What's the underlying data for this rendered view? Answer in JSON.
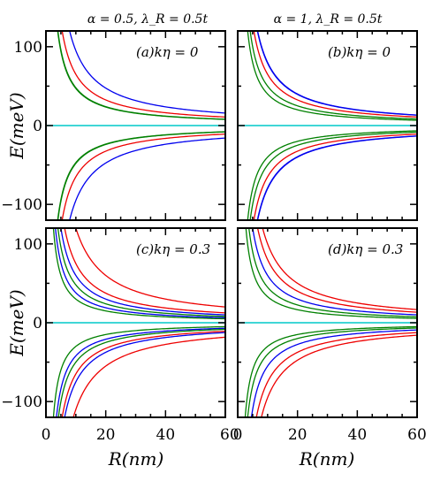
{
  "chart_data": {
    "type": "line",
    "xlabel": "R(nm)",
    "ylabel": "E(meV)",
    "xlim": [
      0,
      60
    ],
    "ylim": [
      -120,
      120
    ],
    "xticks": [
      0,
      20,
      40,
      60
    ],
    "yticks": [
      100,
      0,
      -100
    ],
    "column_titles": [
      "α = 0.5, λ_R = 0.5t",
      "α = 1, λ_R = 0.5t"
    ],
    "grid": false,
    "colors": {
      "blue": "#0000ee",
      "red": "#ee0000",
      "green": "#008000",
      "cyan": "#00c8c8"
    },
    "panels": [
      {
        "id": "a",
        "annotation": "(a)kη = 0",
        "zero_line": true,
        "curves": [
          {
            "color": "blue",
            "a": 950,
            "sign": 1
          },
          {
            "color": "red",
            "a": 650,
            "sign": 1
          },
          {
            "color": "green",
            "a": 480,
            "sign": 1
          },
          {
            "color": "green",
            "a": 470,
            "sign": 1
          },
          {
            "color": "green",
            "a": -470,
            "sign": -1
          },
          {
            "color": "green",
            "a": -480,
            "sign": -1
          },
          {
            "color": "red",
            "a": -650,
            "sign": -1
          },
          {
            "color": "blue",
            "a": -950,
            "sign": -1
          }
        ]
      },
      {
        "id": "b",
        "annotation": "(b)kη = 0",
        "zero_line": true,
        "curves": [
          {
            "color": "blue",
            "a": 800,
            "sign": 1
          },
          {
            "color": "blue",
            "a": 790,
            "sign": 1
          },
          {
            "color": "red",
            "a": 650,
            "sign": 1
          },
          {
            "color": "green",
            "a": 500,
            "sign": 1
          },
          {
            "color": "green",
            "a": 400,
            "sign": 1
          },
          {
            "color": "green",
            "a": -400,
            "sign": -1
          },
          {
            "color": "green",
            "a": -500,
            "sign": -1
          },
          {
            "color": "red",
            "a": -650,
            "sign": -1
          },
          {
            "color": "blue",
            "a": -790,
            "sign": -1
          },
          {
            "color": "blue",
            "a": -800,
            "sign": -1
          }
        ]
      },
      {
        "id": "c",
        "annotation": "(c)kη = 0.3",
        "zero_line": true,
        "curves": [
          {
            "color": "red",
            "a": 1200,
            "sign": 1
          },
          {
            "color": "red",
            "a": 750,
            "sign": 1
          },
          {
            "color": "blue",
            "a": 600,
            "sign": 1
          },
          {
            "color": "green",
            "a": 480,
            "sign": 1
          },
          {
            "color": "blue",
            "a": 380,
            "sign": 1
          },
          {
            "color": "green",
            "a": 300,
            "sign": 1
          },
          {
            "color": "green",
            "a": -300,
            "sign": -1
          },
          {
            "color": "blue",
            "a": -420,
            "sign": -1
          },
          {
            "color": "green",
            "a": -500,
            "sign": -1
          },
          {
            "color": "red",
            "a": -650,
            "sign": -1
          },
          {
            "color": "blue",
            "a": -750,
            "sign": -1
          },
          {
            "color": "red",
            "a": -1100,
            "sign": -1
          }
        ]
      },
      {
        "id": "d",
        "annotation": "(d)kη = 0.3",
        "zero_line": true,
        "curves": [
          {
            "color": "red",
            "a": 1000,
            "sign": 1
          },
          {
            "color": "red",
            "a": 800,
            "sign": 1
          },
          {
            "color": "blue",
            "a": 600,
            "sign": 1
          },
          {
            "color": "green",
            "a": 450,
            "sign": 1
          },
          {
            "color": "green",
            "a": 330,
            "sign": 1
          },
          {
            "color": "green",
            "a": -300,
            "sign": -1
          },
          {
            "color": "green",
            "a": -400,
            "sign": -1
          },
          {
            "color": "blue",
            "a": -550,
            "sign": -1
          },
          {
            "color": "red",
            "a": -750,
            "sign": -1
          },
          {
            "color": "red",
            "a": -950,
            "sign": -1
          }
        ]
      }
    ]
  }
}
